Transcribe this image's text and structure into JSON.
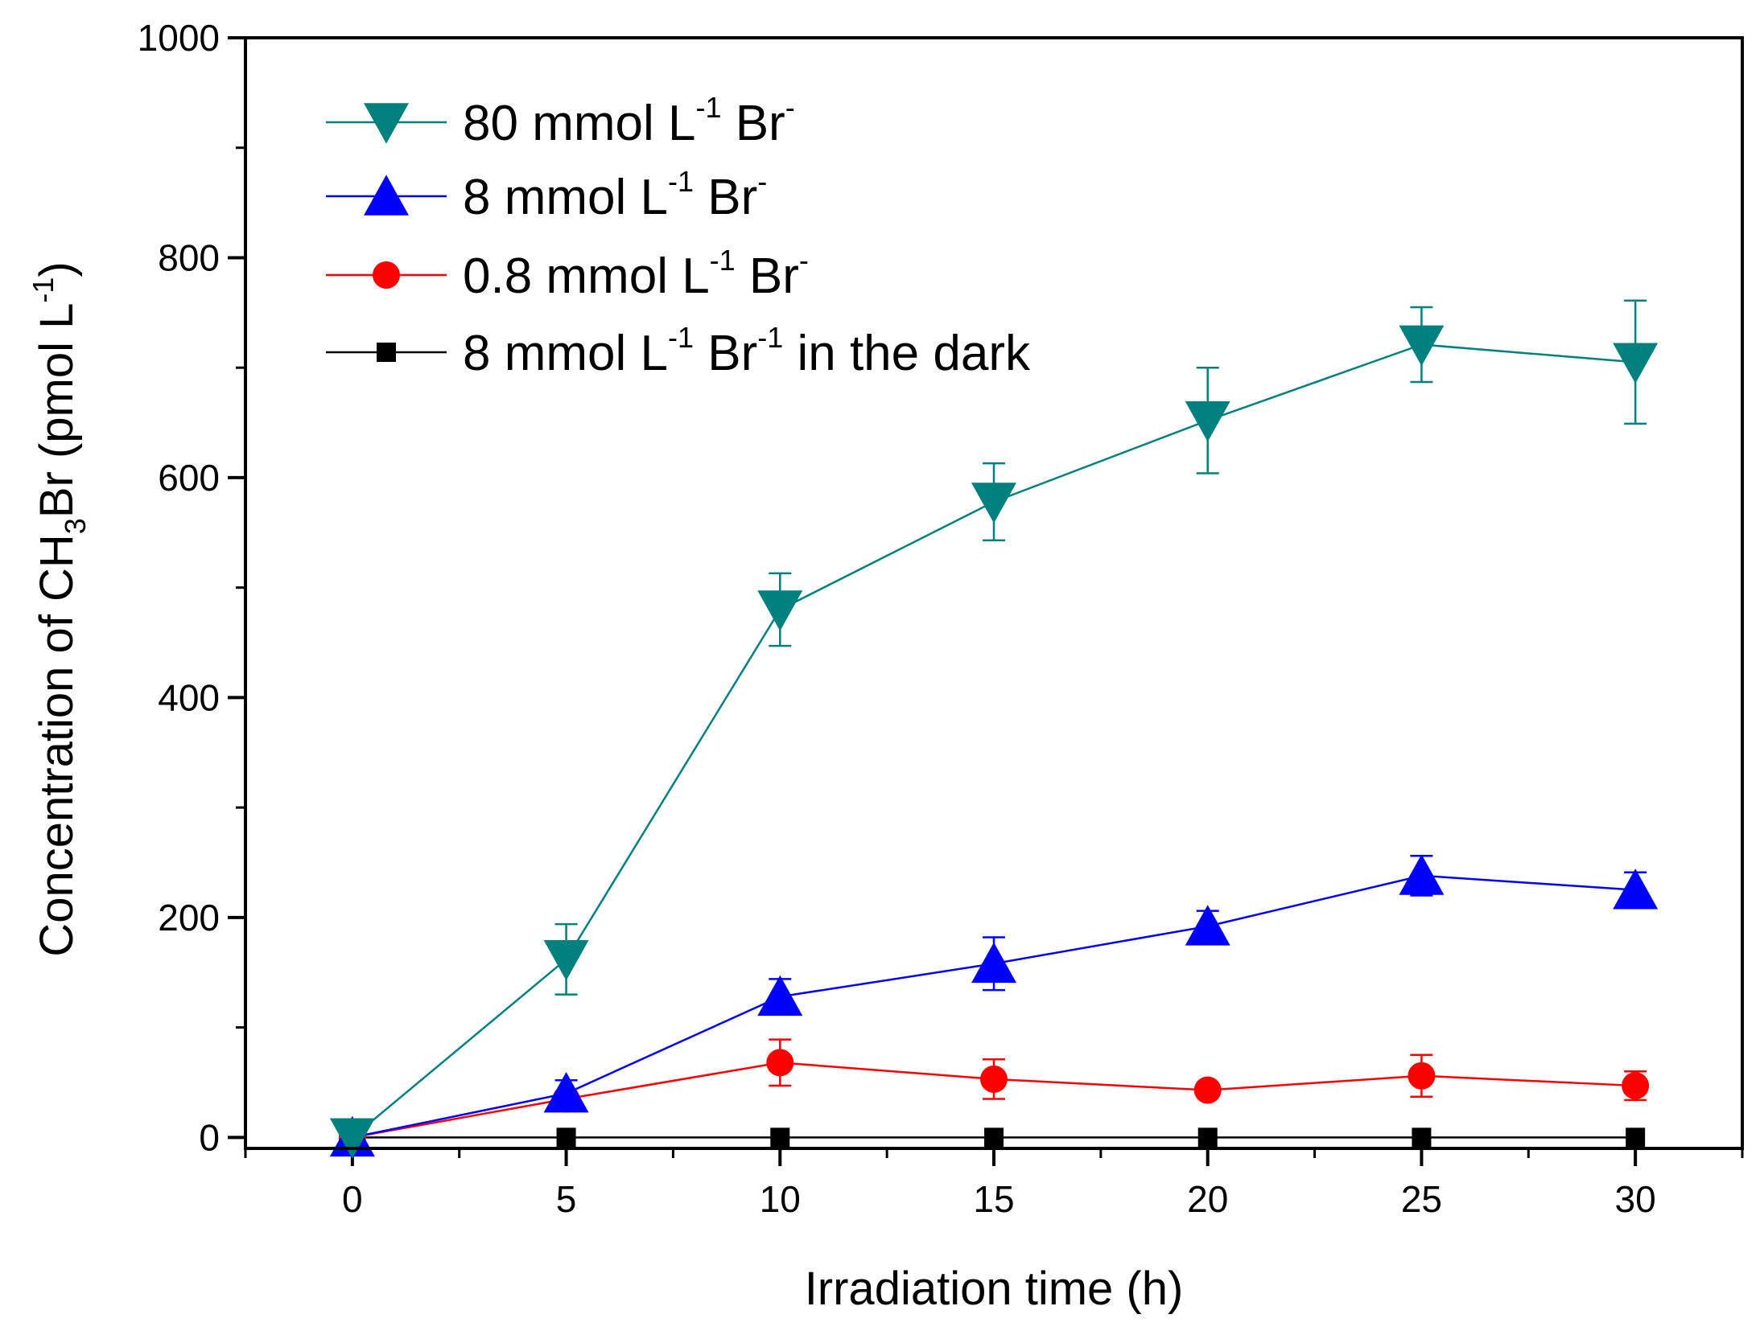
{
  "chart_data": {
    "type": "line",
    "title": "",
    "xlabel": "Irradiation time (h)",
    "ylabel": {
      "prefix": "Concentration of CH",
      "sub": "3",
      "middle": "Br (pmol L",
      "sup": "-1",
      "suffix": ")"
    },
    "xlim": [
      -2.5,
      32.5
    ],
    "ylim": [
      -10,
      1000
    ],
    "x_major_ticks": [
      0,
      5,
      10,
      15,
      20,
      25,
      30
    ],
    "x_tick_labels": [
      "0",
      "5",
      "10",
      "15",
      "20",
      "25",
      "30"
    ],
    "x_minor_ticks": [
      -2.5,
      2.5,
      7.5,
      12.5,
      17.5,
      22.5,
      27.5,
      32.5
    ],
    "y_major_ticks": [
      0,
      200,
      400,
      600,
      800,
      1000
    ],
    "y_tick_labels": [
      "0",
      "200",
      "400",
      "600",
      "800",
      "1000"
    ],
    "y_minor_ticks": [
      100,
      300,
      500,
      700,
      900
    ],
    "grid": false,
    "legend_position": "top-left",
    "x": [
      0,
      5,
      10,
      15,
      20,
      25,
      30
    ],
    "series": [
      {
        "legend": {
          "main": "80 mmol L",
          "sup1": "-1",
          "mid": " Br",
          "sup2": "-",
          "tail": ""
        },
        "color": "#00807f",
        "marker": "triangle-down",
        "values": [
          0,
          162,
          480,
          578,
          652,
          721,
          705
        ],
        "errors": [
          0,
          32,
          33,
          35,
          48,
          34,
          56
        ]
      },
      {
        "legend": {
          "main": "8 mmol L",
          "sup1": "-1",
          "mid": " Br",
          "sup2": "-",
          "tail": ""
        },
        "color": "#0000ff",
        "marker": "triangle-up",
        "values": [
          0,
          40,
          128,
          158,
          192,
          238,
          225
        ],
        "errors": [
          0,
          12,
          16,
          24,
          14,
          18,
          16
        ]
      },
      {
        "legend": {
          "main": "0.8 mmol L",
          "sup1": "-1",
          "mid": " Br",
          "sup2": "-",
          "tail": ""
        },
        "color": "#ff0000",
        "marker": "circle",
        "values": [
          0,
          35,
          68,
          53,
          43,
          56,
          47
        ],
        "errors": [
          0,
          6,
          21,
          18,
          4,
          19,
          13
        ]
      },
      {
        "legend": {
          "main": "8 mmol L",
          "sup1": "-1",
          "mid": " Br",
          "sup2": "-1",
          "tail": " in the dark"
        },
        "color": "#000000",
        "marker": "square",
        "values": [
          0,
          0,
          0,
          0,
          0,
          0,
          0
        ],
        "errors": [
          0,
          0,
          0,
          0,
          0,
          0,
          0
        ]
      }
    ]
  }
}
